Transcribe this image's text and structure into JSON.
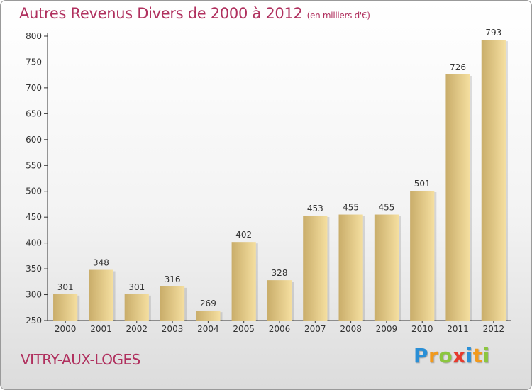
{
  "header": {
    "title": "Autres Revenus Divers de 2000 à 2012",
    "unit": "(en milliers d'€)"
  },
  "footer": {
    "commune": "VITRY-AUX-LOGES",
    "logo_letters": [
      {
        "ch": "P",
        "color": "#2a8fd6"
      },
      {
        "ch": "r",
        "color": "#f29a1c"
      },
      {
        "ch": "o",
        "color": "#8cc63f"
      },
      {
        "ch": "x",
        "color": "#e63a2e"
      },
      {
        "ch": "i",
        "color": "#2a8fd6"
      },
      {
        "ch": "t",
        "color": "#f29a1c"
      },
      {
        "ch": "i",
        "color": "#8cc63f"
      }
    ]
  },
  "chart_data": {
    "type": "bar",
    "categories": [
      "2000",
      "2001",
      "2002",
      "2003",
      "2004",
      "2005",
      "2006",
      "2007",
      "2008",
      "2009",
      "2010",
      "2011",
      "2012"
    ],
    "values": [
      301,
      348,
      301,
      316,
      269,
      402,
      328,
      453,
      455,
      455,
      501,
      726,
      793
    ],
    "title": "Autres Revenus Divers de 2000 à 2012",
    "ylim": [
      250,
      800
    ],
    "yticks": [
      250,
      300,
      350,
      400,
      450,
      500,
      550,
      600,
      650,
      700,
      750,
      800
    ],
    "grid": false,
    "bar_color_light": "#f5dfa0",
    "bar_color_dark": "#c9ad6a"
  }
}
